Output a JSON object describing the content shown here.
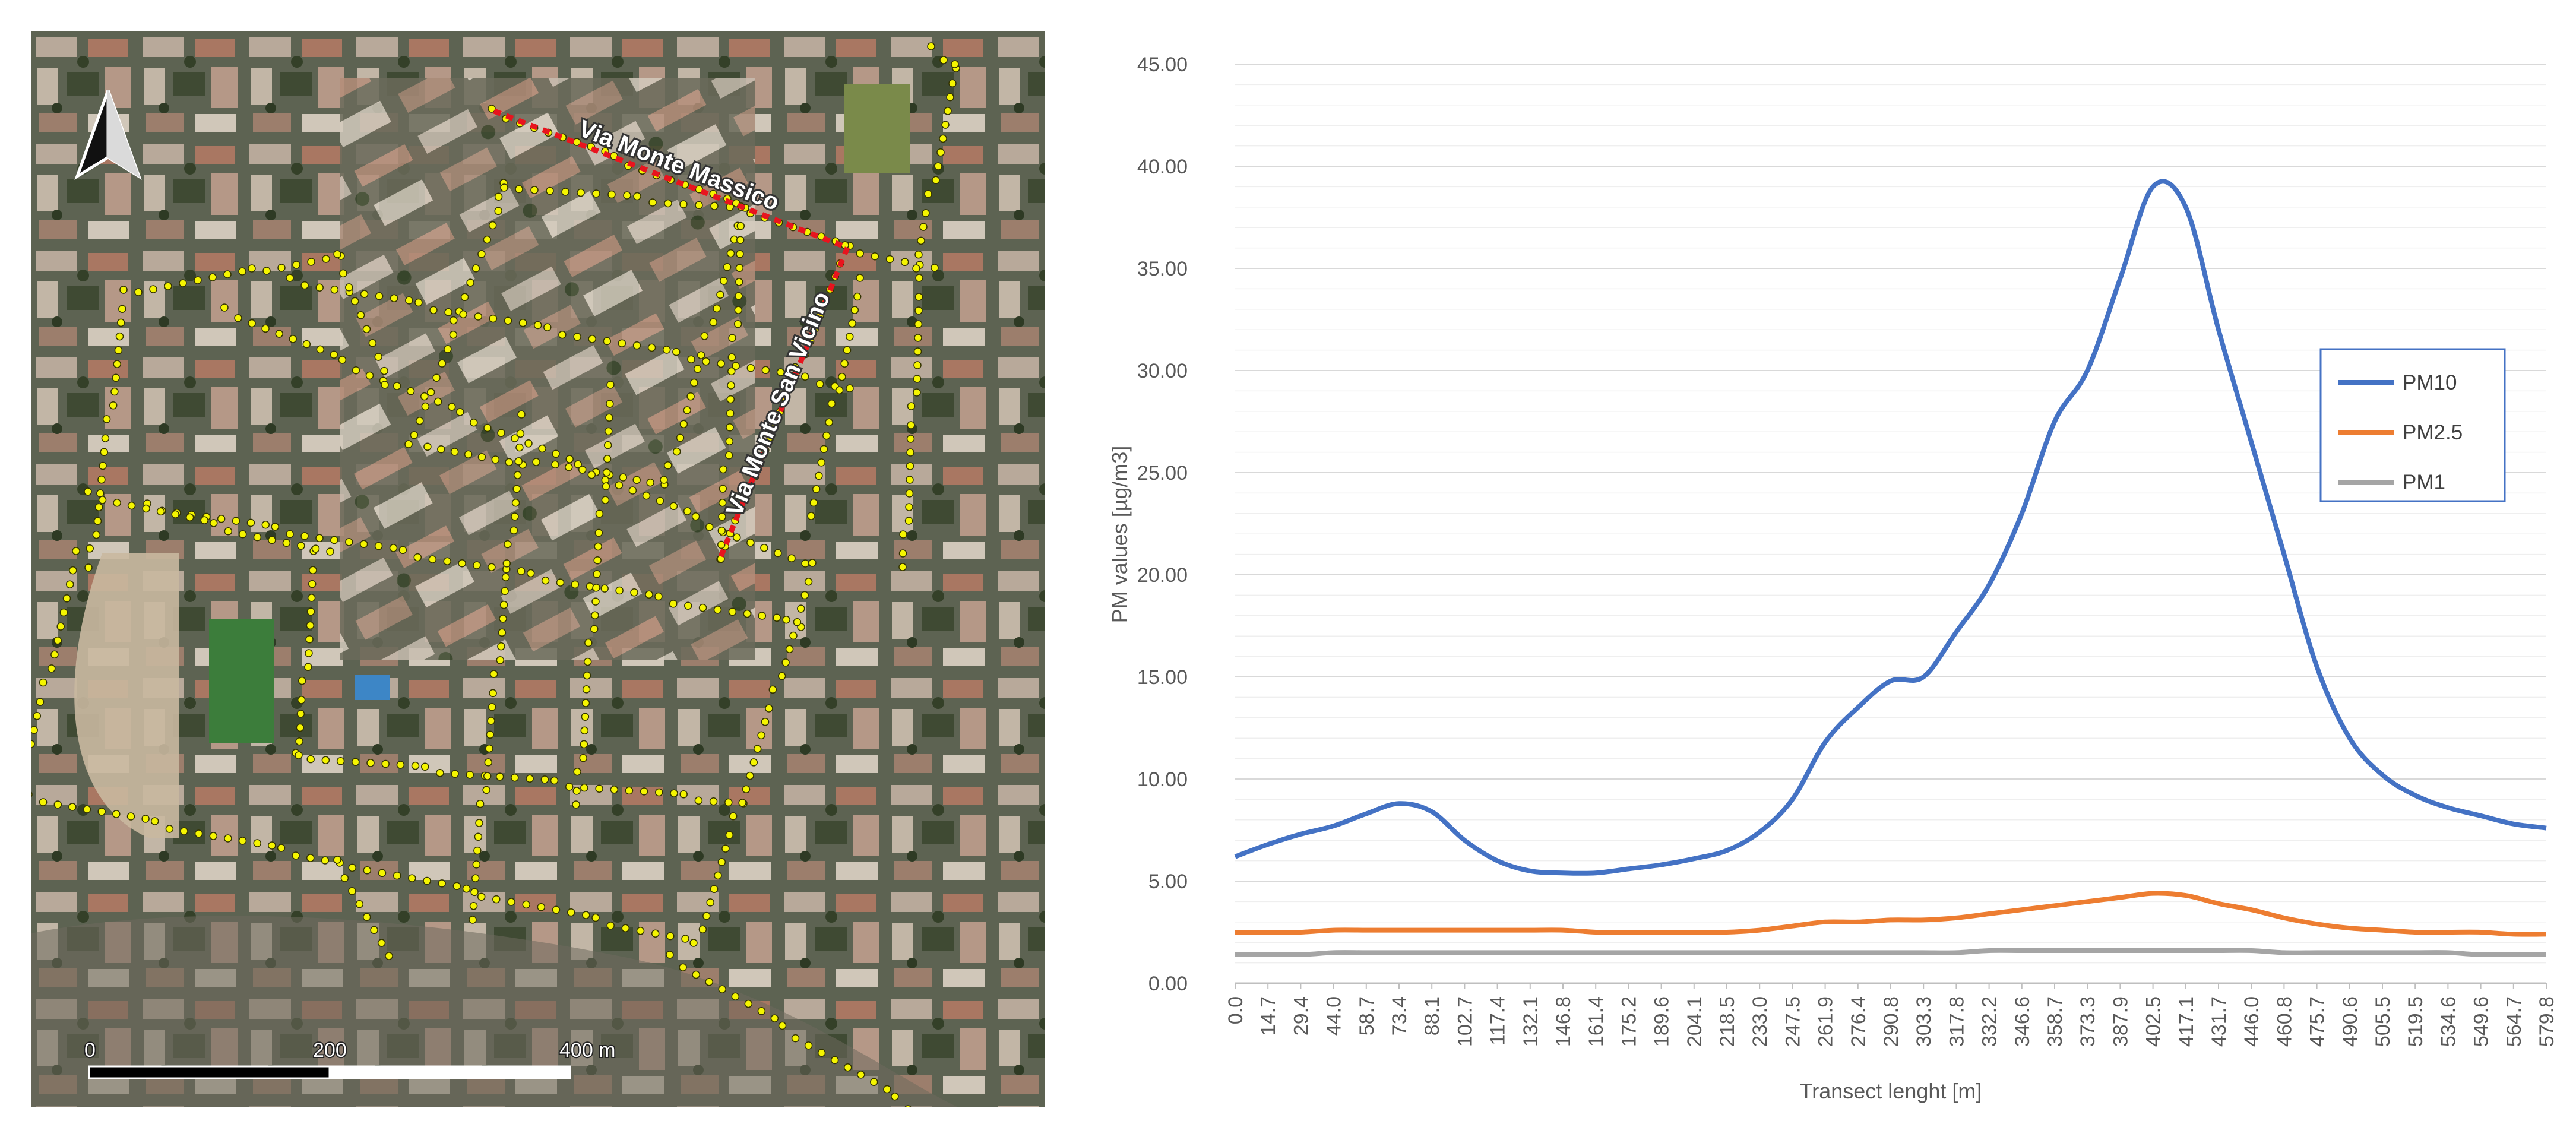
{
  "map": {
    "north_arrow_icon": "north-arrow-icon",
    "street_labels": [
      "Via Monte Massico",
      "Via Monte San Vicino"
    ],
    "scale_labels": [
      "0",
      "200",
      "400 m"
    ],
    "colors": {
      "track_points": "#f5f500",
      "transect": "#e8141e"
    }
  },
  "chart_data": {
    "type": "line",
    "xlabel": "Transect lenght [m]",
    "ylabel": "PM values [µg/m3]",
    "ylim": [
      0,
      45
    ],
    "yticks": [
      "0.00",
      "5.00",
      "10.00",
      "15.00",
      "20.00",
      "25.00",
      "30.00",
      "35.00",
      "40.00",
      "45.00"
    ],
    "xticks": [
      "0.0",
      "14.7",
      "29.4",
      "44.0",
      "58.7",
      "73.4",
      "88.1",
      "102.7",
      "117.4",
      "132.1",
      "146.8",
      "161.4",
      "175.2",
      "189.6",
      "204.1",
      "218.5",
      "233.0",
      "247.5",
      "261.9",
      "276.4",
      "290.8",
      "303.3",
      "317.8",
      "332.2",
      "346.6",
      "358.7",
      "373.3",
      "387.9",
      "402.5",
      "417.1",
      "431.7",
      "446.0",
      "460.8",
      "475.7",
      "490.6",
      "505.5",
      "519.5",
      "534.6",
      "549.6",
      "564.7",
      "579.8"
    ],
    "grid": true,
    "legend_position": "right",
    "series": [
      {
        "name": "PM10",
        "color": "#4472C4",
        "values": [
          6.2,
          6.8,
          7.3,
          7.7,
          8.3,
          8.8,
          8.4,
          7.0,
          6.0,
          5.5,
          5.4,
          5.4,
          5.6,
          5.8,
          6.1,
          6.5,
          7.4,
          9.0,
          11.8,
          13.5,
          14.8,
          15.0,
          17.2,
          19.5,
          23.0,
          27.5,
          30.0,
          34.5,
          39.0,
          38.0,
          32.0,
          26.5,
          21.0,
          15.5,
          12.0,
          10.2,
          9.2,
          8.6,
          8.2,
          7.8,
          7.6
        ]
      },
      {
        "name": "PM2.5",
        "color": "#ED7D31",
        "values": [
          2.5,
          2.5,
          2.5,
          2.6,
          2.6,
          2.6,
          2.6,
          2.6,
          2.6,
          2.6,
          2.6,
          2.5,
          2.5,
          2.5,
          2.5,
          2.5,
          2.6,
          2.8,
          3.0,
          3.0,
          3.1,
          3.1,
          3.2,
          3.4,
          3.6,
          3.8,
          4.0,
          4.2,
          4.4,
          4.3,
          3.9,
          3.6,
          3.2,
          2.9,
          2.7,
          2.6,
          2.5,
          2.5,
          2.5,
          2.4,
          2.4
        ]
      },
      {
        "name": "PM1",
        "color": "#A5A5A5",
        "values": [
          1.4,
          1.4,
          1.4,
          1.5,
          1.5,
          1.5,
          1.5,
          1.5,
          1.5,
          1.5,
          1.5,
          1.5,
          1.5,
          1.5,
          1.5,
          1.5,
          1.5,
          1.5,
          1.5,
          1.5,
          1.5,
          1.5,
          1.5,
          1.6,
          1.6,
          1.6,
          1.6,
          1.6,
          1.6,
          1.6,
          1.6,
          1.6,
          1.5,
          1.5,
          1.5,
          1.5,
          1.5,
          1.5,
          1.4,
          1.4,
          1.4
        ]
      }
    ]
  }
}
